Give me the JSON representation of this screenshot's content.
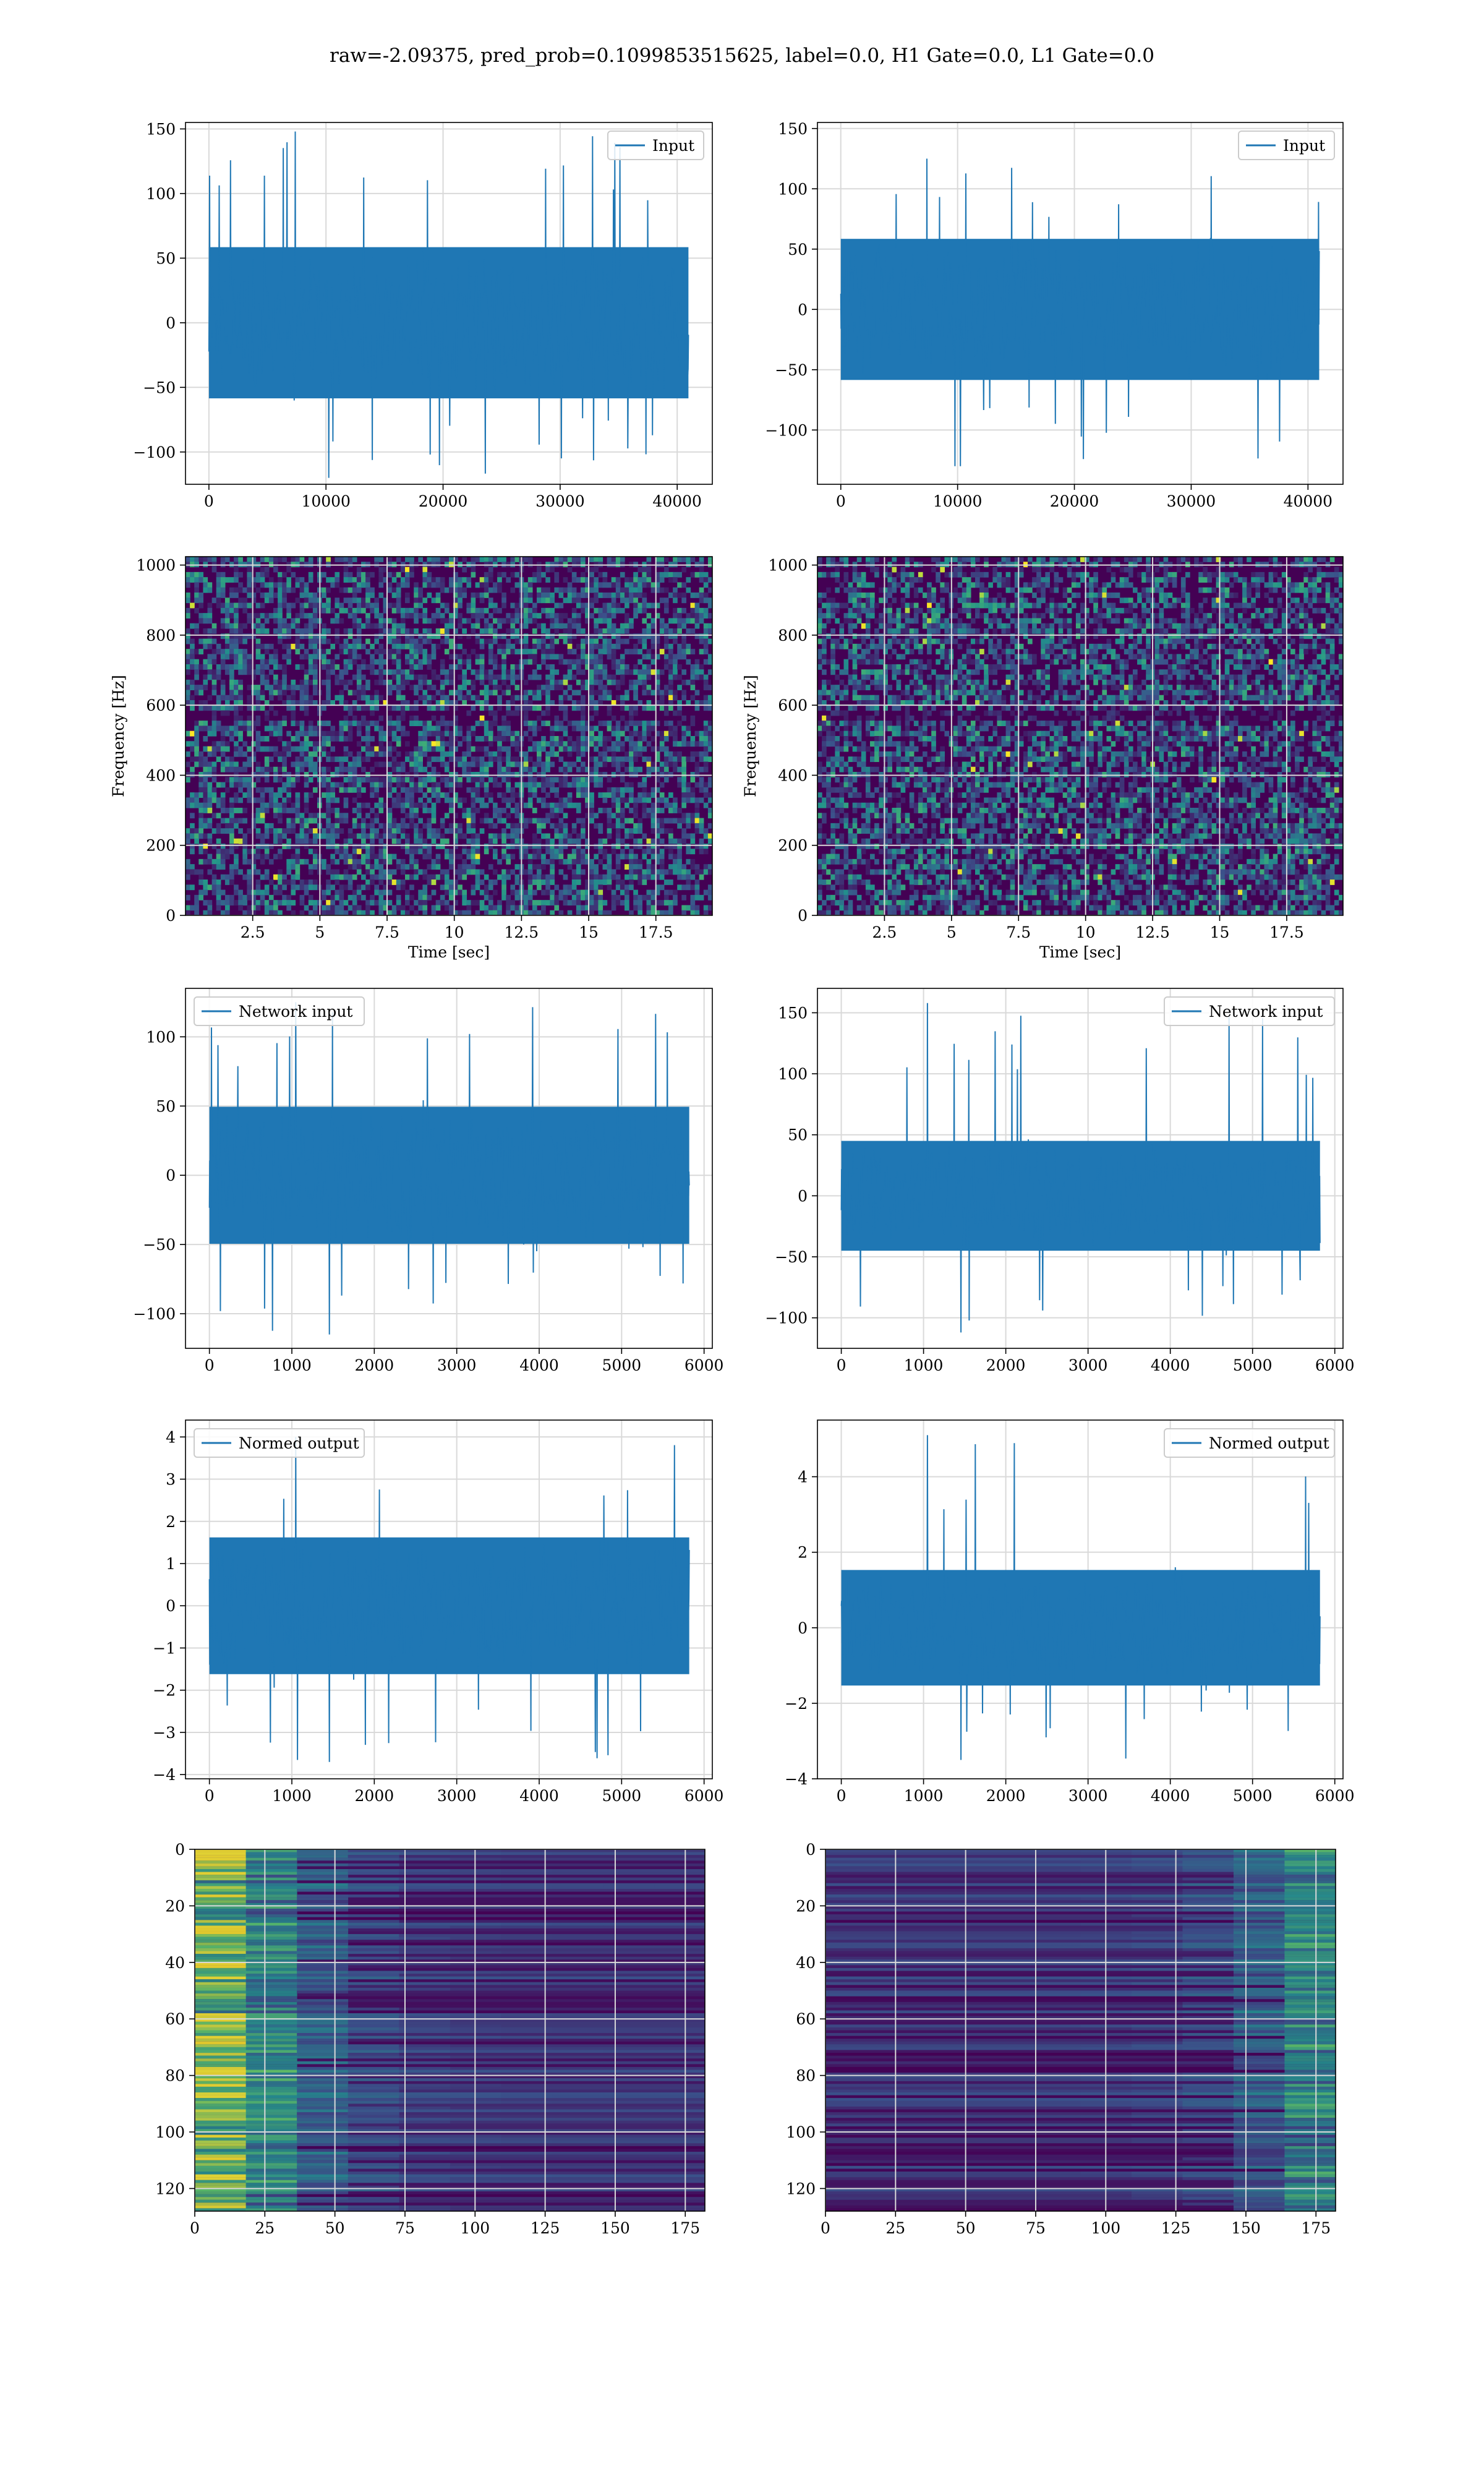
{
  "suptitle": "raw=-2.09375, pred_prob=0.1099853515625, label=0.0, H1 Gate=0.0, L1 Gate=0.0",
  "colors": {
    "line": "#1f77b4",
    "grid": "#d9d9d9",
    "viridis_dark": "#440154",
    "viridis_mid": "#21918c",
    "viridis_bright": "#fde725"
  },
  "chart_data": [
    {
      "type": "line",
      "row": 1,
      "col": 1,
      "legend": [
        "Input"
      ],
      "legend_loc": "upper right",
      "xlim": [
        -2000,
        43000
      ],
      "ylim": [
        -125,
        155
      ],
      "xticks": [
        0,
        10000,
        20000,
        30000,
        40000
      ],
      "yticks": [
        -100,
        -50,
        0,
        50,
        100,
        150
      ],
      "series": [
        {
          "name": "Input",
          "n": 40960,
          "x_range": [
            0,
            40960
          ],
          "band": [
            -65,
            65
          ],
          "peak": [
            -120,
            148
          ]
        }
      ],
      "grid": true
    },
    {
      "type": "line",
      "row": 1,
      "col": 2,
      "legend": [
        "Input"
      ],
      "legend_loc": "upper right",
      "xlim": [
        -2000,
        43000
      ],
      "ylim": [
        -145,
        155
      ],
      "xticks": [
        0,
        10000,
        20000,
        30000,
        40000
      ],
      "yticks": [
        -100,
        -50,
        0,
        50,
        100,
        150
      ],
      "series": [
        {
          "name": "Input",
          "n": 40960,
          "x_range": [
            0,
            40960
          ],
          "band": [
            -65,
            65
          ],
          "peak": [
            -130,
            125
          ]
        }
      ],
      "grid": true
    },
    {
      "type": "heatmap",
      "row": 2,
      "col": 1,
      "xlabel": "Time [sec]",
      "ylabel": "Frequency [Hz]",
      "xlim": [
        0,
        19.6
      ],
      "ylim": [
        0,
        1024
      ],
      "xticks": [
        2.5,
        5.0,
        7.5,
        10.0,
        12.5,
        15.0,
        17.5
      ],
      "yticks": [
        0,
        200,
        400,
        600,
        800,
        1000
      ],
      "colormap": "viridis",
      "grid": true
    },
    {
      "type": "heatmap",
      "row": 2,
      "col": 2,
      "xlabel": "Time [sec]",
      "ylabel": "Frequency [Hz]",
      "xlim": [
        0,
        19.6
      ],
      "ylim": [
        0,
        1024
      ],
      "xticks": [
        2.5,
        5.0,
        7.5,
        10.0,
        12.5,
        15.0,
        17.5
      ],
      "yticks": [
        0,
        200,
        400,
        600,
        800,
        1000
      ],
      "colormap": "viridis",
      "grid": true
    },
    {
      "type": "line",
      "row": 3,
      "col": 1,
      "legend": [
        "Network input"
      ],
      "legend_loc": "upper left",
      "xlim": [
        -290,
        6100
      ],
      "ylim": [
        -125,
        135
      ],
      "xticks": [
        0,
        1000,
        2000,
        3000,
        4000,
        5000,
        6000
      ],
      "yticks": [
        -100,
        -50,
        0,
        50,
        100
      ],
      "series": [
        {
          "name": "Network input",
          "n": 5820,
          "x_range": [
            0,
            5820
          ],
          "band": [
            -55,
            55
          ],
          "peak": [
            -115,
            125
          ]
        }
      ],
      "grid": true
    },
    {
      "type": "line",
      "row": 3,
      "col": 2,
      "legend": [
        "Network input"
      ],
      "legend_loc": "upper right",
      "xlim": [
        -290,
        6100
      ],
      "ylim": [
        -125,
        170
      ],
      "xticks": [
        0,
        1000,
        2000,
        3000,
        4000,
        5000,
        6000
      ],
      "yticks": [
        -100,
        -50,
        0,
        50,
        100,
        150
      ],
      "series": [
        {
          "name": "Network input",
          "n": 5820,
          "x_range": [
            0,
            5820
          ],
          "band": [
            -50,
            50
          ],
          "peak": [
            -112,
            158
          ]
        }
      ],
      "grid": true
    },
    {
      "type": "line",
      "row": 4,
      "col": 1,
      "legend": [
        "Normed output"
      ],
      "legend_loc": "upper left",
      "xlim": [
        -290,
        6100
      ],
      "ylim": [
        -4.1,
        4.4
      ],
      "xticks": [
        0,
        1000,
        2000,
        3000,
        4000,
        5000,
        6000
      ],
      "yticks": [
        -4,
        -3,
        -2,
        -1,
        0,
        1,
        2,
        3,
        4
      ],
      "series": [
        {
          "name": "Normed output",
          "n": 5820,
          "x_range": [
            0,
            5820
          ],
          "band": [
            -1.8,
            1.8
          ],
          "peak": [
            -3.7,
            4.0
          ]
        }
      ],
      "grid": true
    },
    {
      "type": "line",
      "row": 4,
      "col": 2,
      "legend": [
        "Normed output"
      ],
      "legend_loc": "upper right",
      "xlim": [
        -290,
        6100
      ],
      "ylim": [
        -4.0,
        5.5
      ],
      "xticks": [
        0,
        1000,
        2000,
        3000,
        4000,
        5000,
        6000
      ],
      "yticks": [
        -4,
        -2,
        0,
        2,
        4
      ],
      "series": [
        {
          "name": "Normed output",
          "n": 5820,
          "x_range": [
            0,
            5820
          ],
          "band": [
            -1.7,
            1.7
          ],
          "peak": [
            -3.5,
            5.1
          ]
        }
      ],
      "grid": true
    },
    {
      "type": "heatmap",
      "row": 5,
      "col": 1,
      "xlim": [
        0,
        182
      ],
      "ylim": [
        128,
        0
      ],
      "xticks": [
        0,
        25,
        50,
        75,
        100,
        125,
        150,
        175
      ],
      "yticks": [
        0,
        20,
        40,
        60,
        80,
        100,
        120
      ],
      "colormap": "viridis",
      "bright_side": "left",
      "grid": true
    },
    {
      "type": "heatmap",
      "row": 5,
      "col": 2,
      "xlim": [
        0,
        182
      ],
      "ylim": [
        128,
        0
      ],
      "xticks": [
        0,
        25,
        50,
        75,
        100,
        125,
        150,
        175
      ],
      "yticks": [
        0,
        20,
        40,
        60,
        80,
        100,
        120
      ],
      "colormap": "viridis",
      "bright_side": "right",
      "grid": true
    }
  ]
}
